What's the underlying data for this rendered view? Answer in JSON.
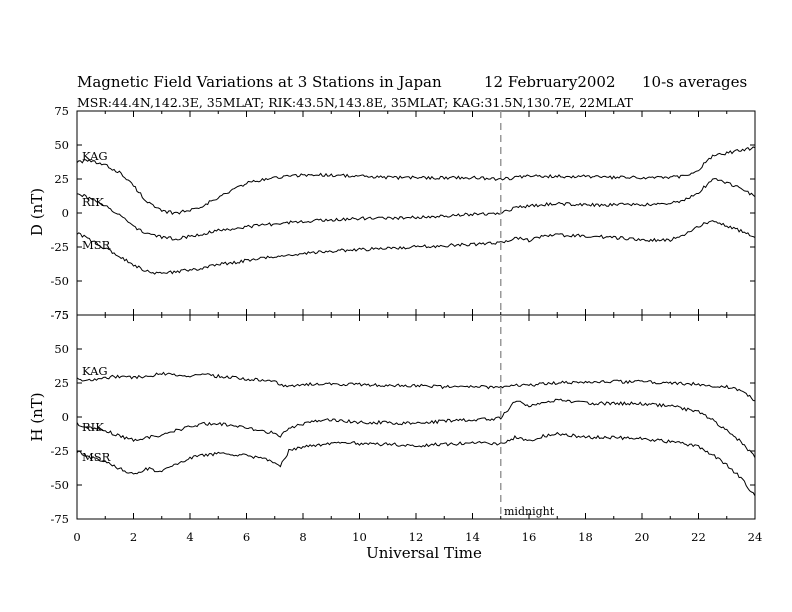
{
  "header": {
    "title": "Magnetic Field Variations at 3 Stations in Japan",
    "date": "12 February2002",
    "averaging": "10-s averages",
    "stations_line": "MSR:44.4N,142.3E, 35MLAT;  RIK:43.5N,143.8E, 35MLAT;  KAG:31.5N,130.7E, 22MLAT"
  },
  "chart_data": [
    {
      "type": "line",
      "panel": "D",
      "ylabel": "D (nT)",
      "ylim": [
        -75,
        75
      ],
      "yticks": [
        "75",
        "50",
        "25",
        "0",
        "-25",
        "-50",
        "-75"
      ],
      "xlim": [
        0,
        24
      ],
      "series": [
        {
          "name": "KAG",
          "x": [
            0,
            0.5,
            1,
            1.5,
            2,
            2.5,
            3,
            3.5,
            4,
            4.5,
            5,
            5.5,
            6,
            6.5,
            7,
            7.5,
            8,
            9,
            10,
            11,
            12,
            13,
            14,
            15,
            15.5,
            16,
            16.5,
            17,
            18,
            19,
            20,
            21,
            21.5,
            22,
            22.5,
            23,
            23.5,
            24
          ],
          "y": [
            38,
            38,
            35,
            30,
            20,
            8,
            1,
            0,
            2,
            6,
            11,
            17,
            22,
            24,
            26,
            27,
            28,
            28,
            27,
            26,
            26,
            26,
            26,
            25,
            26,
            27,
            27,
            27,
            27,
            26,
            26,
            26,
            27,
            32,
            42,
            44,
            46,
            48
          ]
        },
        {
          "name": "RIK",
          "x": [
            0,
            0.5,
            1,
            1.5,
            2,
            2.5,
            3,
            3.5,
            4,
            4.5,
            5,
            6,
            7,
            8,
            9,
            10,
            11,
            12,
            13,
            14,
            15,
            15.5,
            16,
            16.5,
            17,
            18,
            19,
            20,
            21,
            21.5,
            22,
            22.5,
            23,
            23.5,
            24
          ],
          "y": [
            15,
            10,
            5,
            -1,
            -10,
            -15,
            -18,
            -19,
            -17,
            -15,
            -13,
            -10,
            -8,
            -6,
            -5,
            -4,
            -4,
            -3,
            -2,
            -1,
            0,
            4,
            5,
            6,
            7,
            6,
            6,
            6,
            7,
            9,
            15,
            25,
            22,
            18,
            12
          ]
        },
        {
          "name": "MSR",
          "x": [
            0,
            0.5,
            1,
            1.5,
            2,
            2.5,
            3,
            3.5,
            4,
            4.5,
            5,
            6,
            7,
            8,
            9,
            10,
            11,
            12,
            13,
            14,
            15,
            15.5,
            16,
            16.5,
            17,
            18,
            19,
            20,
            21,
            21.5,
            22,
            22.5,
            23,
            23.5,
            24
          ],
          "y": [
            -15,
            -20,
            -26,
            -32,
            -38,
            -43,
            -45,
            -43,
            -42,
            -40,
            -38,
            -35,
            -32,
            -30,
            -28,
            -27,
            -26,
            -25,
            -24,
            -23,
            -22,
            -18,
            -20,
            -17,
            -16,
            -17,
            -18,
            -20,
            -20,
            -16,
            -10,
            -5,
            -10,
            -13,
            -18
          ]
        }
      ]
    },
    {
      "type": "line",
      "panel": "H",
      "ylabel": "H (nT)",
      "ylim": [
        -75,
        75
      ],
      "yticks": [
        "75",
        "50",
        "25",
        "0",
        "-25",
        "-50",
        "-75"
      ],
      "xlim": [
        0,
        24
      ],
      "xlabel": "Universal Time",
      "xticks": [
        "0",
        "2",
        "4",
        "6",
        "8",
        "10",
        "12",
        "14",
        "16",
        "18",
        "20",
        "22",
        "24"
      ],
      "series": [
        {
          "name": "KAG",
          "x": [
            0,
            0.5,
            1,
            1.5,
            2,
            2.5,
            3,
            3.5,
            4,
            4.5,
            5,
            6,
            7,
            7.5,
            8,
            9,
            10,
            11,
            12,
            13,
            14,
            15,
            15.5,
            16,
            16.5,
            17,
            18,
            19,
            20,
            21,
            22,
            22.5,
            23,
            23.5,
            24
          ],
          "y": [
            28,
            27,
            29,
            30,
            29,
            30,
            32,
            31,
            30,
            31,
            30,
            28,
            26,
            22,
            24,
            24,
            24,
            23,
            23,
            22,
            22,
            22,
            24,
            23,
            25,
            25,
            26,
            26,
            26,
            25,
            24,
            23,
            22,
            20,
            12
          ]
        },
        {
          "name": "RIK",
          "x": [
            0,
            0.5,
            1,
            1.5,
            2,
            2.5,
            3,
            3.5,
            4,
            4.5,
            5,
            6,
            7,
            7.2,
            7.5,
            8,
            8.5,
            9,
            9.5,
            10,
            11,
            12,
            13,
            14,
            15,
            15.5,
            16,
            16.5,
            17,
            18,
            19,
            20,
            21,
            22,
            22.5,
            23,
            23.5,
            24
          ],
          "y": [
            -5,
            -8,
            -10,
            -14,
            -17,
            -15,
            -14,
            -10,
            -7,
            -5,
            -5,
            -8,
            -12,
            -14,
            -8,
            -5,
            -3,
            -2,
            -3,
            -4,
            -4,
            -5,
            -3,
            -2,
            -1,
            12,
            8,
            10,
            13,
            10,
            10,
            10,
            8,
            4,
            -2,
            -10,
            -18,
            -30
          ]
        },
        {
          "name": "MSR",
          "x": [
            0,
            0.5,
            1,
            1.5,
            2,
            2.5,
            3,
            3.5,
            4,
            4.5,
            5,
            6,
            7,
            7.2,
            7.5,
            8,
            9,
            9.5,
            10,
            11,
            12,
            13,
            14,
            15,
            15.5,
            16,
            16.5,
            17,
            18,
            19,
            20,
            21,
            22,
            22.5,
            23,
            23.5,
            24
          ],
          "y": [
            -25,
            -30,
            -32,
            -38,
            -42,
            -38,
            -40,
            -35,
            -30,
            -28,
            -27,
            -28,
            -33,
            -36,
            -25,
            -22,
            -20,
            -18,
            -20,
            -20,
            -21,
            -20,
            -19,
            -20,
            -15,
            -18,
            -14,
            -12,
            -15,
            -15,
            -16,
            -18,
            -22,
            -28,
            -35,
            -45,
            -58
          ]
        }
      ]
    }
  ],
  "marker": {
    "x": 15,
    "label": "midnight"
  }
}
